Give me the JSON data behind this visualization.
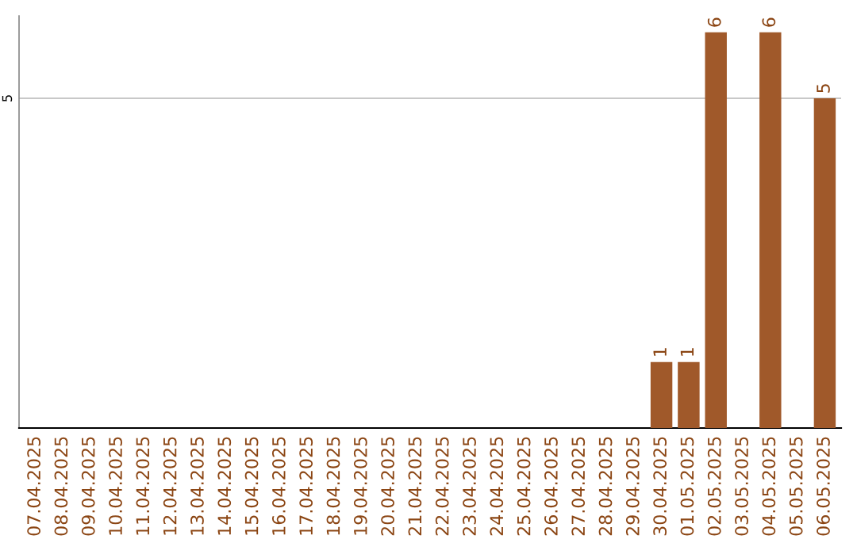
{
  "chart_data": {
    "type": "bar",
    "categories": [
      "07.04.2025",
      "08.04.2025",
      "09.04.2025",
      "10.04.2025",
      "11.04.2025",
      "12.04.2025",
      "13.04.2025",
      "14.04.2025",
      "15.04.2025",
      "16.04.2025",
      "17.04.2025",
      "18.04.2025",
      "19.04.2025",
      "20.04.2025",
      "21.04.2025",
      "22.04.2025",
      "23.04.2025",
      "24.04.2025",
      "25.04.2025",
      "26.04.2025",
      "27.04.2025",
      "28.04.2025",
      "29.04.2025",
      "30.04.2025",
      "01.05.2025",
      "02.05.2025",
      "03.05.2025",
      "04.05.2025",
      "05.05.2025",
      "06.05.2025"
    ],
    "values": [
      null,
      null,
      null,
      null,
      null,
      null,
      null,
      null,
      null,
      null,
      null,
      null,
      null,
      null,
      null,
      null,
      null,
      null,
      null,
      null,
      null,
      null,
      null,
      1,
      1,
      6,
      null,
      6,
      null,
      5
    ],
    "color": "#a0592a",
    "ylim": [
      0,
      6.25
    ],
    "yticks": [
      5
    ],
    "grid": "y",
    "data_labels": true
  }
}
